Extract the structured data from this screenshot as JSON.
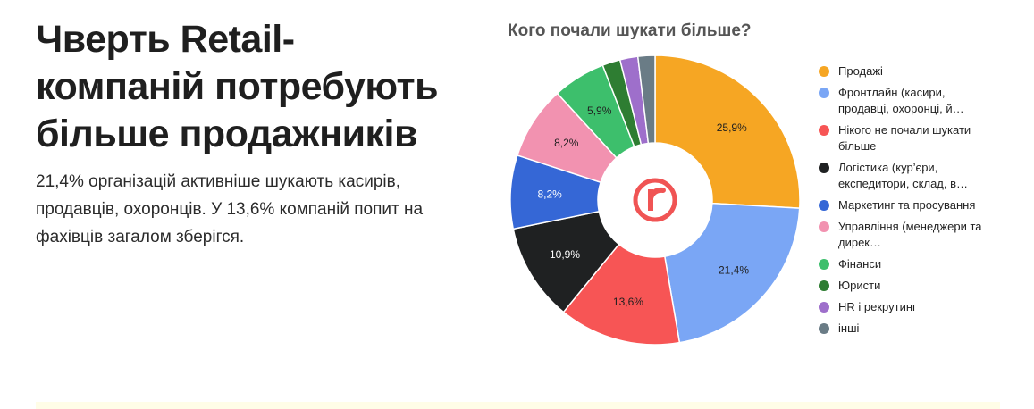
{
  "article": {
    "headline": "Чверть Retail-компаній потребують більше продажників",
    "lead": "21,4% організацій активніше шукають касирів, продавців, охоронців. У 13,6% компаній попит на фахівців загалом зберігся."
  },
  "chart_data": {
    "type": "pie",
    "donut": true,
    "title": "Кого почали шукати більше?",
    "legend_position": "right",
    "center_logo": "r-logo",
    "slices": [
      {
        "label": "Продажі",
        "display": "Продажі",
        "value": 25.9,
        "value_label": "25,9%",
        "color": "#f6a623"
      },
      {
        "label": "Фронтлайн (касири, продавці, охоронці, й…",
        "display": "Фронтлайн (касири, продавці, охоронці, й…",
        "value": 21.4,
        "value_label": "21,4%",
        "color": "#7aa6f5"
      },
      {
        "label": "Нікого не почали шукати більше",
        "display": "Нікого не почали шукати більше",
        "value": 13.6,
        "value_label": "13,6%",
        "color": "#f75555"
      },
      {
        "label": "Логістика (кур’єри, експедитори, склад, в…",
        "display": "Логістика (кур’єри, експедитори, склад, в…",
        "value": 10.9,
        "value_label": "10,9%",
        "color": "#1f2122"
      },
      {
        "label": "Маркетинг та просування",
        "display": "Маркетинг та просування",
        "value": 8.2,
        "value_label": "8,2%",
        "color": "#3567d6"
      },
      {
        "label": "Управління (менеджери та дирек…",
        "display": "Управління (менеджери та дирек…",
        "value": 8.2,
        "value_label": "8,2%",
        "color": "#f292b0"
      },
      {
        "label": "Фінанси",
        "display": "Фінанси",
        "value": 5.9,
        "value_label": "5,9%",
        "color": "#3dbf6c"
      },
      {
        "label": "Юристи",
        "display": "Юристи",
        "value": 2.0,
        "value_label": "",
        "color": "#2e7d32"
      },
      {
        "label": "HR і рекрутинг",
        "display": "HR і рекрутинг",
        "value": 2.0,
        "value_label": "",
        "color": "#9e6fcb"
      },
      {
        "label": "інші",
        "display": "інші",
        "value": 1.9,
        "value_label": "",
        "color": "#6a7c86"
      }
    ],
    "label_colors": [
      "#1f1f1f",
      "#1f1f1f",
      "#1f1f1f",
      "#ffffff",
      "#ffffff",
      "#1f1f1f",
      "#1f1f1f",
      "#1f1f1f",
      "#1f1f1f",
      "#1f1f1f"
    ]
  },
  "logo": {
    "color": "#f05454"
  }
}
